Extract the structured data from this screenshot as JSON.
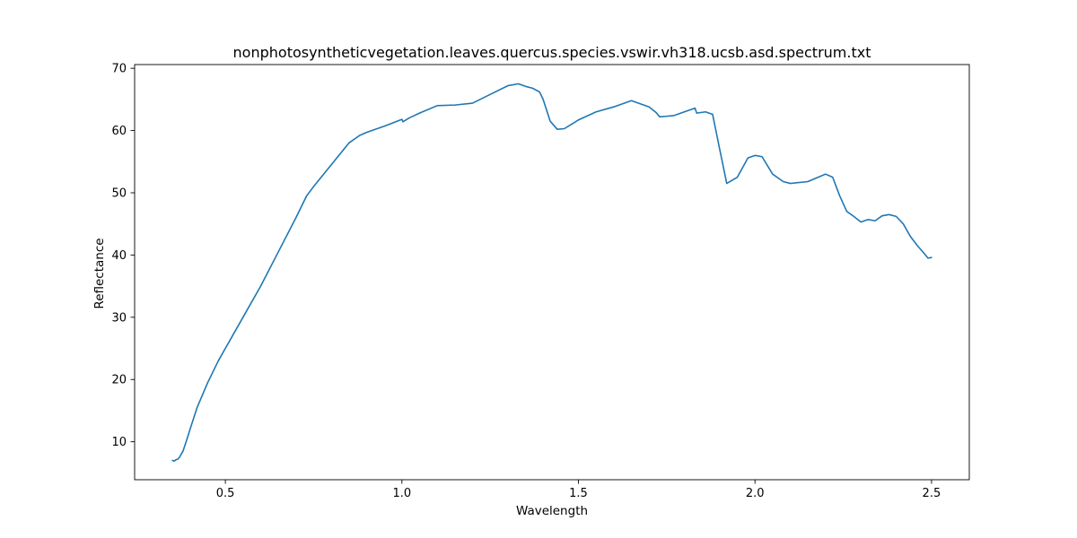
{
  "chart_data": {
    "type": "line",
    "title": "nonphotosyntheticvegetation.leaves.quercus.species.vswir.vh318.ucsb.asd.spectrum.txt",
    "xlabel": "Wavelength",
    "ylabel": "Reflectance",
    "xlim": [
      0.243,
      2.607
    ],
    "ylim": [
      3.9,
      70.6
    ],
    "xticks": [
      0.5,
      1.0,
      1.5,
      2.0,
      2.5
    ],
    "xtick_labels": [
      "0.5",
      "1.0",
      "1.5",
      "2.0",
      "2.5"
    ],
    "yticks": [
      10,
      20,
      30,
      40,
      50,
      60,
      70
    ],
    "ytick_labels": [
      "10",
      "20",
      "30",
      "40",
      "50",
      "60",
      "70"
    ],
    "grid": false,
    "line_color": "#1f77b4",
    "series": [
      {
        "x": [
          0.35,
          0.355,
          0.36,
          0.365,
          0.37,
          0.38,
          0.39,
          0.4,
          0.42,
          0.45,
          0.48,
          0.5,
          0.55,
          0.6,
          0.65,
          0.7,
          0.73,
          0.75,
          0.8,
          0.85,
          0.88,
          0.9,
          0.95,
          1.0,
          1.003,
          1.02,
          1.05,
          1.1,
          1.15,
          1.2,
          1.25,
          1.3,
          1.33,
          1.35,
          1.37,
          1.39,
          1.4,
          1.42,
          1.44,
          1.46,
          1.5,
          1.55,
          1.6,
          1.65,
          1.7,
          1.72,
          1.73,
          1.75,
          1.77,
          1.8,
          1.83,
          1.835,
          1.86,
          1.88,
          1.9,
          1.92,
          1.95,
          1.98,
          2.0,
          2.02,
          2.05,
          2.08,
          2.1,
          2.15,
          2.2,
          2.22,
          2.24,
          2.26,
          2.28,
          2.3,
          2.32,
          2.34,
          2.36,
          2.38,
          2.4,
          2.42,
          2.44,
          2.46,
          2.48,
          2.49,
          2.5
        ],
        "y": [
          7.0,
          6.9,
          7.1,
          7.2,
          7.5,
          8.5,
          10.2,
          12.0,
          15.5,
          19.5,
          23.0,
          25.0,
          30.0,
          35.0,
          40.5,
          46.0,
          49.5,
          51.0,
          54.5,
          58.0,
          59.2,
          59.7,
          60.7,
          61.8,
          61.4,
          62.0,
          62.8,
          64.0,
          64.1,
          64.4,
          65.8,
          67.2,
          67.5,
          67.1,
          66.8,
          66.2,
          65.0,
          61.5,
          60.2,
          60.3,
          61.7,
          63.0,
          63.8,
          64.8,
          63.8,
          62.9,
          62.2,
          62.3,
          62.4,
          63.0,
          63.6,
          62.8,
          63.0,
          62.6,
          57.0,
          51.5,
          52.5,
          55.6,
          56.0,
          55.8,
          53.0,
          51.8,
          51.5,
          51.8,
          53.0,
          52.5,
          49.5,
          47.0,
          46.2,
          45.3,
          45.7,
          45.5,
          46.3,
          46.5,
          46.2,
          45.0,
          43.0,
          41.5,
          40.2,
          39.5,
          39.6
        ]
      }
    ]
  }
}
